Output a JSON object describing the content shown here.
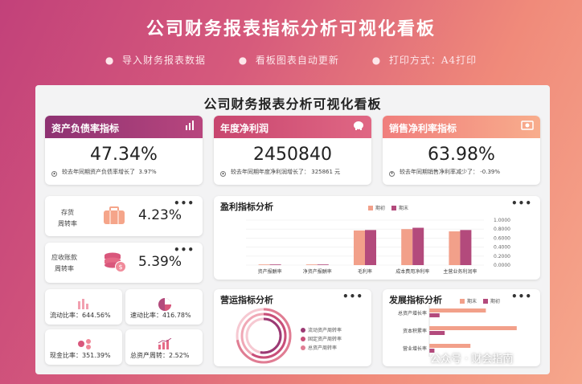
{
  "banner": {
    "title": "公司财务报表指标分析可视化看板",
    "bullets": [
      "导入财务报表数据",
      "看板图表自动更新",
      "打印方式：A4打印"
    ]
  },
  "board": {
    "title": "公司财务报表分析可视化看板"
  },
  "kpis": [
    {
      "title": "资产负债率指标",
      "value": "47.34%",
      "note": "较去年同期资产负债率增长了",
      "note_value": "3.97%",
      "icon": "bar-chart-icon",
      "color": "#9b3a74"
    },
    {
      "title": "年度净利润",
      "value": "2450840",
      "note": "较去年同期年度净利润增长了：",
      "note_value": "325861 元",
      "icon": "piggy-bank-icon",
      "color": "#d9577c"
    },
    {
      "title": "销售净利率指标",
      "value": "63.98%",
      "note": "较去年同期销售净利率减少了：",
      "note_value": "-0.39%",
      "icon": "money-icon",
      "color": "#f2907e"
    }
  ],
  "turnover": [
    {
      "label": "存货",
      "label2": "周转率",
      "value": "4.23%",
      "icon": "briefcase-icon"
    },
    {
      "label": "应收账款",
      "label2": "周转率",
      "value": "5.39%",
      "icon": "coins-icon"
    }
  ],
  "ratios": [
    {
      "label": "流动比率：",
      "value": "644.56%",
      "icon": "bars-icon"
    },
    {
      "label": "速动比率：",
      "value": "416.78%",
      "icon": "pie-icon"
    },
    {
      "label": "现金比率：",
      "value": "351.39%",
      "icon": "dots-icon"
    },
    {
      "label": "总资产周转：",
      "value": "2.52%",
      "icon": "trend-icon"
    }
  ],
  "profit_chart": {
    "title": "盈利指标分析",
    "legend": [
      "期初",
      "期末"
    ],
    "colors": [
      "#f2a08a",
      "#b34a7c"
    ]
  },
  "ops_chart": {
    "title": "营运指标分析",
    "legend": [
      "流动资产周转率",
      "固定资产周转率",
      "总资产周转率"
    ]
  },
  "dev_chart": {
    "title": "发展指标分析",
    "legend": [
      "期末",
      "期初"
    ]
  },
  "chart_data": [
    {
      "type": "bar",
      "title": "盈利指标分析",
      "categories": [
        "资产报酬率",
        "净资产报酬率",
        "毛利率",
        "成本费用净利率",
        "主营业务利润率"
      ],
      "series": [
        {
          "name": "期初",
          "values": [
            0.01,
            0.01,
            0.77,
            0.8,
            0.75
          ]
        },
        {
          "name": "期末",
          "values": [
            0.01,
            0.01,
            0.78,
            0.83,
            0.78
          ]
        }
      ],
      "yticks": [
        "1.0000",
        "0.8000",
        "0.6000",
        "0.4000",
        "0.2000",
        "0.0000"
      ],
      "ylim": [
        0,
        1
      ]
    },
    {
      "type": "bar",
      "title": "发展指标分析",
      "categories": [
        "总资产增长率",
        "资本积累率",
        "营业增长率"
      ],
      "series": [
        {
          "name": "期末",
          "values": [
            0.55,
            0.85,
            0.4
          ]
        },
        {
          "name": "期初",
          "values": [
            0.1,
            0.15,
            0.05
          ]
        }
      ]
    }
  ],
  "watermark": "公众号 · 财会指南"
}
